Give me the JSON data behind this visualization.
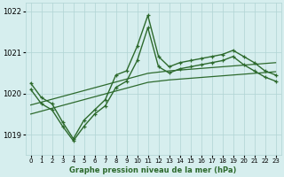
{
  "x": [
    0,
    1,
    2,
    3,
    4,
    5,
    6,
    7,
    8,
    9,
    10,
    11,
    12,
    13,
    14,
    15,
    16,
    17,
    18,
    19,
    20,
    21,
    22,
    23
  ],
  "y_line1": [
    1020.25,
    1019.9,
    1019.75,
    1019.3,
    1018.9,
    1019.35,
    1019.6,
    1019.85,
    1020.45,
    1020.55,
    1021.15,
    1021.9,
    1020.9,
    1020.65,
    1020.75,
    1020.8,
    1020.85,
    1020.9,
    1020.95,
    1021.05,
    1020.9,
    1020.75,
    1020.55,
    1020.45
  ],
  "y_line2": [
    1020.1,
    1019.75,
    1019.6,
    1019.2,
    1018.85,
    1019.2,
    1019.5,
    1019.7,
    1020.15,
    1020.3,
    1020.8,
    1021.6,
    1020.65,
    1020.5,
    1020.6,
    1020.65,
    1020.7,
    1020.75,
    1020.8,
    1020.9,
    1020.7,
    1020.55,
    1020.4,
    1020.3
  ],
  "y_smooth1": [
    1019.72,
    1019.79,
    1019.86,
    1019.93,
    1020.0,
    1020.07,
    1020.14,
    1020.21,
    1020.28,
    1020.35,
    1020.42,
    1020.49,
    1020.52,
    1020.55,
    1020.57,
    1020.59,
    1020.61,
    1020.63,
    1020.65,
    1020.67,
    1020.69,
    1020.71,
    1020.73,
    1020.75
  ],
  "y_smooth2": [
    1019.5,
    1019.57,
    1019.64,
    1019.71,
    1019.78,
    1019.85,
    1019.92,
    1019.99,
    1020.06,
    1020.13,
    1020.2,
    1020.27,
    1020.3,
    1020.33,
    1020.35,
    1020.37,
    1020.39,
    1020.41,
    1020.43,
    1020.45,
    1020.47,
    1020.49,
    1020.51,
    1020.53
  ],
  "line_color": "#2d6a2d",
  "bg_color": "#d6eeee",
  "grid_color": "#b0d4d4",
  "xlabel": "Graphe pression niveau de la mer (hPa)",
  "ylim": [
    1018.5,
    1022.2
  ],
  "xlim": [
    -0.5,
    23.5
  ],
  "yticks": [
    1019,
    1020,
    1021,
    1022
  ],
  "xticks": [
    0,
    1,
    2,
    3,
    4,
    5,
    6,
    7,
    8,
    9,
    10,
    11,
    12,
    13,
    14,
    15,
    16,
    17,
    18,
    19,
    20,
    21,
    22,
    23
  ]
}
